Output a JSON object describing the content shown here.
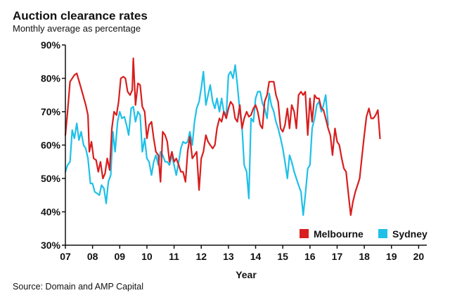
{
  "chart_data": {
    "type": "line",
    "title": "Auction clearance rates",
    "subtitle": "Monthly average as percentage",
    "xlabel": "Year",
    "ylabel": "",
    "source": "Source: Domain and AMP Capital",
    "ylim": [
      30,
      90
    ],
    "yticks": [
      30,
      40,
      50,
      60,
      70,
      80,
      90
    ],
    "ytick_labels": [
      "30%",
      "40%",
      "50%",
      "60%",
      "70%",
      "80%",
      "90%"
    ],
    "xlim": [
      2007,
      2020.3
    ],
    "xticks": [
      2007,
      2008,
      2009,
      2010,
      2011,
      2012,
      2013,
      2014,
      2015,
      2016,
      2017,
      2018,
      2019,
      2020
    ],
    "xtick_labels": [
      "07",
      "08",
      "09",
      "10",
      "11",
      "12",
      "13",
      "14",
      "15",
      "16",
      "17",
      "18",
      "19",
      "20"
    ],
    "legend_position": "bottom-right",
    "series": [
      {
        "name": "Melbourne",
        "color": "#d81e1e",
        "points": [
          [
            2007.0,
            63
          ],
          [
            2007.08,
            70
          ],
          [
            2007.17,
            79
          ],
          [
            2007.33,
            81
          ],
          [
            2007.42,
            81.5
          ],
          [
            2007.58,
            77
          ],
          [
            2007.75,
            72
          ],
          [
            2007.83,
            69
          ],
          [
            2007.88,
            58
          ],
          [
            2007.96,
            61
          ],
          [
            2008.04,
            56
          ],
          [
            2008.13,
            55.5
          ],
          [
            2008.21,
            52
          ],
          [
            2008.29,
            55
          ],
          [
            2008.38,
            50
          ],
          [
            2008.46,
            51.5
          ],
          [
            2008.54,
            56
          ],
          [
            2008.63,
            52.5
          ],
          [
            2008.71,
            65
          ],
          [
            2008.79,
            70
          ],
          [
            2008.88,
            69
          ],
          [
            2008.96,
            73
          ],
          [
            2009.04,
            80
          ],
          [
            2009.13,
            80.5
          ],
          [
            2009.21,
            80
          ],
          [
            2009.29,
            76
          ],
          [
            2009.38,
            75
          ],
          [
            2009.46,
            76.5
          ],
          [
            2009.5,
            86
          ],
          [
            2009.58,
            72
          ],
          [
            2009.67,
            78.5
          ],
          [
            2009.75,
            78
          ],
          [
            2009.83,
            71.5
          ],
          [
            2009.92,
            70
          ],
          [
            2010.0,
            62
          ],
          [
            2010.08,
            66
          ],
          [
            2010.17,
            67
          ],
          [
            2010.25,
            62
          ],
          [
            2010.33,
            58
          ],
          [
            2010.42,
            57
          ],
          [
            2010.5,
            49
          ],
          [
            2010.58,
            64
          ],
          [
            2010.67,
            63
          ],
          [
            2010.75,
            61
          ],
          [
            2010.83,
            55
          ],
          [
            2010.92,
            58
          ],
          [
            2011.0,
            55
          ],
          [
            2011.08,
            56
          ],
          [
            2011.17,
            54
          ],
          [
            2011.25,
            52
          ],
          [
            2011.33,
            52
          ],
          [
            2011.42,
            49
          ],
          [
            2011.5,
            58
          ],
          [
            2011.58,
            62.5
          ],
          [
            2011.67,
            56
          ],
          [
            2011.75,
            57
          ],
          [
            2011.83,
            58
          ],
          [
            2011.92,
            46.5
          ],
          [
            2012.0,
            56
          ],
          [
            2012.08,
            58
          ],
          [
            2012.17,
            63
          ],
          [
            2012.25,
            61
          ],
          [
            2012.33,
            60
          ],
          [
            2012.42,
            59
          ],
          [
            2012.5,
            60
          ],
          [
            2012.58,
            65
          ],
          [
            2012.67,
            68
          ],
          [
            2012.75,
            67
          ],
          [
            2012.83,
            70
          ],
          [
            2012.92,
            68
          ],
          [
            2013.0,
            71
          ],
          [
            2013.08,
            73
          ],
          [
            2013.17,
            72
          ],
          [
            2013.25,
            68
          ],
          [
            2013.33,
            67
          ],
          [
            2013.42,
            72
          ],
          [
            2013.5,
            65
          ],
          [
            2013.58,
            68
          ],
          [
            2013.67,
            70
          ],
          [
            2013.75,
            68.5
          ],
          [
            2013.83,
            69
          ],
          [
            2013.92,
            71
          ],
          [
            2014.0,
            72
          ],
          [
            2014.08,
            70
          ],
          [
            2014.17,
            66
          ],
          [
            2014.25,
            65
          ],
          [
            2014.33,
            73
          ],
          [
            2014.42,
            75
          ],
          [
            2014.5,
            79
          ],
          [
            2014.58,
            79
          ],
          [
            2014.67,
            79
          ],
          [
            2014.75,
            75
          ],
          [
            2014.83,
            73
          ],
          [
            2014.92,
            65
          ],
          [
            2015.0,
            64
          ],
          [
            2015.08,
            66
          ],
          [
            2015.17,
            71
          ],
          [
            2015.25,
            65
          ],
          [
            2015.33,
            72
          ],
          [
            2015.42,
            70
          ],
          [
            2015.5,
            65
          ],
          [
            2015.58,
            75
          ],
          [
            2015.67,
            76
          ],
          [
            2015.75,
            75
          ],
          [
            2015.83,
            76
          ],
          [
            2015.92,
            63
          ],
          [
            2016.0,
            74
          ],
          [
            2016.08,
            67
          ],
          [
            2016.17,
            75
          ],
          [
            2016.25,
            74
          ],
          [
            2016.33,
            74
          ],
          [
            2016.42,
            71
          ],
          [
            2016.5,
            70.5
          ],
          [
            2016.58,
            68
          ],
          [
            2016.67,
            65
          ],
          [
            2016.75,
            63
          ],
          [
            2016.83,
            57
          ],
          [
            2016.92,
            65
          ],
          [
            2017.0,
            61
          ],
          [
            2017.08,
            60
          ],
          [
            2017.17,
            56
          ],
          [
            2017.25,
            53
          ],
          [
            2017.33,
            52
          ],
          [
            2017.42,
            45
          ],
          [
            2017.5,
            39
          ],
          [
            2017.58,
            43
          ],
          [
            2017.67,
            46
          ],
          [
            2017.75,
            48
          ],
          [
            2017.83,
            50
          ],
          [
            2017.92,
            57
          ],
          [
            2018.0,
            63
          ],
          [
            2018.08,
            68.5
          ],
          [
            2018.17,
            71
          ],
          [
            2018.25,
            68
          ],
          [
            2018.33,
            68
          ],
          [
            2018.42,
            69
          ],
          [
            2018.5,
            70.5
          ],
          [
            2018.58,
            62
          ]
        ]
      },
      {
        "name": "Sydney",
        "color": "#1fc0e8",
        "points": [
          [
            2007.0,
            52
          ],
          [
            2007.08,
            54
          ],
          [
            2007.17,
            55
          ],
          [
            2007.25,
            64.5
          ],
          [
            2007.33,
            62
          ],
          [
            2007.42,
            66.5
          ],
          [
            2007.5,
            61.5
          ],
          [
            2007.58,
            64
          ],
          [
            2007.67,
            60
          ],
          [
            2007.75,
            59
          ],
          [
            2007.83,
            56
          ],
          [
            2007.92,
            48.5
          ],
          [
            2008.0,
            48.5
          ],
          [
            2008.08,
            46
          ],
          [
            2008.17,
            45.5
          ],
          [
            2008.25,
            45
          ],
          [
            2008.33,
            48
          ],
          [
            2008.42,
            47
          ],
          [
            2008.5,
            42.5
          ],
          [
            2008.58,
            49
          ],
          [
            2008.67,
            51
          ],
          [
            2008.75,
            64
          ],
          [
            2008.83,
            58
          ],
          [
            2008.92,
            67
          ],
          [
            2009.0,
            70
          ],
          [
            2009.08,
            68
          ],
          [
            2009.17,
            68.5
          ],
          [
            2009.25,
            66
          ],
          [
            2009.33,
            63
          ],
          [
            2009.42,
            71
          ],
          [
            2009.5,
            71.5
          ],
          [
            2009.58,
            67
          ],
          [
            2009.67,
            70
          ],
          [
            2009.75,
            69
          ],
          [
            2009.83,
            58
          ],
          [
            2009.92,
            62
          ],
          [
            2010.0,
            56
          ],
          [
            2010.08,
            55
          ],
          [
            2010.17,
            51
          ],
          [
            2010.25,
            55
          ],
          [
            2010.33,
            57
          ],
          [
            2010.42,
            54
          ],
          [
            2010.5,
            58
          ],
          [
            2010.58,
            57
          ],
          [
            2010.67,
            55
          ],
          [
            2010.75,
            55
          ],
          [
            2010.83,
            54
          ],
          [
            2010.92,
            57
          ],
          [
            2011.0,
            54
          ],
          [
            2011.08,
            51
          ],
          [
            2011.17,
            55
          ],
          [
            2011.25,
            59
          ],
          [
            2011.33,
            61
          ],
          [
            2011.42,
            60.5
          ],
          [
            2011.5,
            61
          ],
          [
            2011.58,
            64
          ],
          [
            2011.67,
            60
          ],
          [
            2011.75,
            67
          ],
          [
            2011.83,
            71
          ],
          [
            2011.92,
            73
          ],
          [
            2012.0,
            77
          ],
          [
            2012.08,
            82
          ],
          [
            2012.17,
            72
          ],
          [
            2012.25,
            75
          ],
          [
            2012.33,
            78
          ],
          [
            2012.42,
            73
          ],
          [
            2012.5,
            71
          ],
          [
            2012.58,
            74
          ],
          [
            2012.67,
            70
          ],
          [
            2012.75,
            74
          ],
          [
            2012.83,
            70
          ],
          [
            2012.92,
            69
          ],
          [
            2013.0,
            81
          ],
          [
            2013.08,
            82
          ],
          [
            2013.17,
            80
          ],
          [
            2013.25,
            84
          ],
          [
            2013.33,
            78
          ],
          [
            2013.42,
            70
          ],
          [
            2013.5,
            65.5
          ],
          [
            2013.58,
            54
          ],
          [
            2013.67,
            52
          ],
          [
            2013.75,
            44
          ],
          [
            2013.83,
            68
          ],
          [
            2013.92,
            67
          ],
          [
            2014.0,
            74
          ],
          [
            2014.08,
            76
          ],
          [
            2014.17,
            76
          ],
          [
            2014.25,
            72.5
          ],
          [
            2014.33,
            71
          ],
          [
            2014.42,
            68
          ],
          [
            2014.5,
            75.5
          ],
          [
            2014.58,
            72
          ],
          [
            2014.67,
            70
          ],
          [
            2014.75,
            67
          ],
          [
            2014.83,
            65
          ],
          [
            2014.92,
            62
          ],
          [
            2015.0,
            59
          ],
          [
            2015.08,
            55
          ],
          [
            2015.17,
            50
          ],
          [
            2015.25,
            57
          ],
          [
            2015.33,
            55
          ],
          [
            2015.42,
            52
          ],
          [
            2015.5,
            50
          ],
          [
            2015.58,
            48
          ],
          [
            2015.67,
            46
          ],
          [
            2015.75,
            39
          ],
          [
            2015.83,
            45
          ],
          [
            2015.92,
            53
          ],
          [
            2016.0,
            54
          ],
          [
            2016.08,
            65
          ],
          [
            2016.17,
            68
          ],
          [
            2016.25,
            72
          ],
          [
            2016.33,
            73
          ],
          [
            2016.42,
            70
          ],
          [
            2016.5,
            72
          ],
          [
            2016.58,
            75
          ],
          [
            2016.67,
            66
          ]
        ]
      }
    ]
  }
}
